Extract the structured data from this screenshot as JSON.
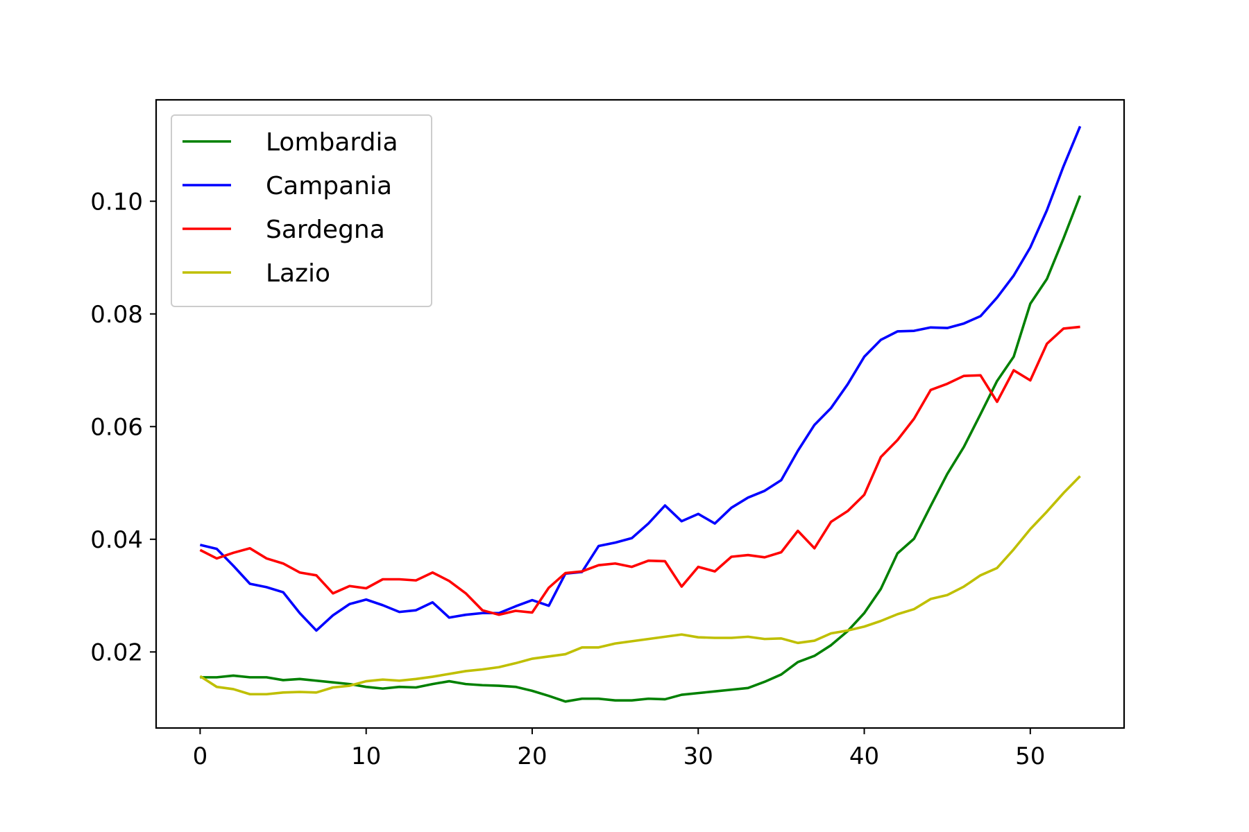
{
  "chart_data": {
    "type": "line",
    "title": "",
    "xlabel": "",
    "ylabel": "",
    "xlim": [
      -2.65,
      55.65
    ],
    "ylim": [
      0.0065,
      0.118
    ],
    "xticks": [
      0,
      10,
      20,
      30,
      40,
      50
    ],
    "xtick_labels": [
      "0",
      "10",
      "20",
      "30",
      "40",
      "50"
    ],
    "yticks": [
      0.02,
      0.04,
      0.06,
      0.08,
      0.1
    ],
    "ytick_labels": [
      "0.02",
      "0.04",
      "0.06",
      "0.08",
      "0.10"
    ],
    "grid": false,
    "legend_position": "upper-left",
    "x": [
      0,
      1,
      2,
      3,
      4,
      5,
      6,
      7,
      8,
      9,
      10,
      11,
      12,
      13,
      14,
      15,
      16,
      17,
      18,
      19,
      20,
      21,
      22,
      23,
      24,
      25,
      26,
      27,
      28,
      29,
      30,
      31,
      32,
      33,
      34,
      35,
      36,
      37,
      38,
      39,
      40,
      41,
      42,
      43,
      44,
      45,
      46,
      47,
      48,
      49,
      50,
      51,
      52,
      53
    ],
    "series": [
      {
        "name": "Lombardia",
        "color": "#008000",
        "values": [
          0.0155,
          0.0155,
          0.0158,
          0.0155,
          0.0155,
          0.015,
          0.0152,
          0.0149,
          0.0146,
          0.0143,
          0.0138,
          0.0135,
          0.0138,
          0.0137,
          0.0143,
          0.0148,
          0.0143,
          0.0141,
          0.014,
          0.0138,
          0.0131,
          0.0122,
          0.0112,
          0.0117,
          0.0117,
          0.0114,
          0.0114,
          0.0117,
          0.0116,
          0.0124,
          0.0127,
          0.013,
          0.0133,
          0.0136,
          0.0147,
          0.016,
          0.0182,
          0.0193,
          0.0212,
          0.0237,
          0.0269,
          0.0312,
          0.0375,
          0.0401,
          0.0459,
          0.0516,
          0.0564,
          0.0622,
          0.0681,
          0.0724,
          0.0818,
          0.0862,
          0.0934,
          0.101
        ]
      },
      {
        "name": "Campania",
        "color": "#0000ff",
        "values": [
          0.039,
          0.0383,
          0.0353,
          0.0321,
          0.0315,
          0.0306,
          0.0269,
          0.0238,
          0.0265,
          0.0285,
          0.0293,
          0.0283,
          0.0271,
          0.0274,
          0.0288,
          0.0261,
          0.0266,
          0.0269,
          0.0269,
          0.0281,
          0.0292,
          0.0282,
          0.0339,
          0.0342,
          0.0388,
          0.0394,
          0.0402,
          0.0428,
          0.046,
          0.0432,
          0.0445,
          0.0428,
          0.0456,
          0.0474,
          0.0486,
          0.0505,
          0.0557,
          0.0603,
          0.0633,
          0.0675,
          0.0724,
          0.0754,
          0.0769,
          0.077,
          0.0776,
          0.0775,
          0.0783,
          0.0796,
          0.0829,
          0.0868,
          0.0918,
          0.0984,
          0.1062,
          0.1133
        ]
      },
      {
        "name": "Sardegna",
        "color": "#ff0000",
        "values": [
          0.0381,
          0.0366,
          0.0376,
          0.0384,
          0.0366,
          0.0357,
          0.0341,
          0.0336,
          0.0304,
          0.0317,
          0.0313,
          0.0329,
          0.0329,
          0.0327,
          0.0341,
          0.0326,
          0.0304,
          0.0274,
          0.0266,
          0.0273,
          0.027,
          0.0314,
          0.034,
          0.0343,
          0.0354,
          0.0357,
          0.0351,
          0.0362,
          0.0361,
          0.0316,
          0.0351,
          0.0343,
          0.0369,
          0.0372,
          0.0368,
          0.0377,
          0.0415,
          0.0384,
          0.0431,
          0.045,
          0.0479,
          0.0546,
          0.0576,
          0.0614,
          0.0665,
          0.0676,
          0.069,
          0.0691,
          0.0644,
          0.07,
          0.0682,
          0.0747,
          0.0774,
          0.0777
        ]
      },
      {
        "name": "Lazio",
        "color": "#bfbf00",
        "values": [
          0.0157,
          0.0138,
          0.0134,
          0.0125,
          0.0125,
          0.0128,
          0.0129,
          0.0128,
          0.0137,
          0.014,
          0.0148,
          0.0151,
          0.0149,
          0.0152,
          0.0156,
          0.0161,
          0.0166,
          0.0169,
          0.0173,
          0.018,
          0.0188,
          0.0192,
          0.0196,
          0.0208,
          0.0208,
          0.0215,
          0.0219,
          0.0223,
          0.0227,
          0.0231,
          0.0226,
          0.0225,
          0.0225,
          0.0227,
          0.0223,
          0.0224,
          0.0216,
          0.022,
          0.0233,
          0.0238,
          0.0245,
          0.0255,
          0.0267,
          0.0276,
          0.0294,
          0.0301,
          0.0316,
          0.0336,
          0.0349,
          0.0382,
          0.0418,
          0.0449,
          0.0482,
          0.0512
        ]
      }
    ]
  }
}
